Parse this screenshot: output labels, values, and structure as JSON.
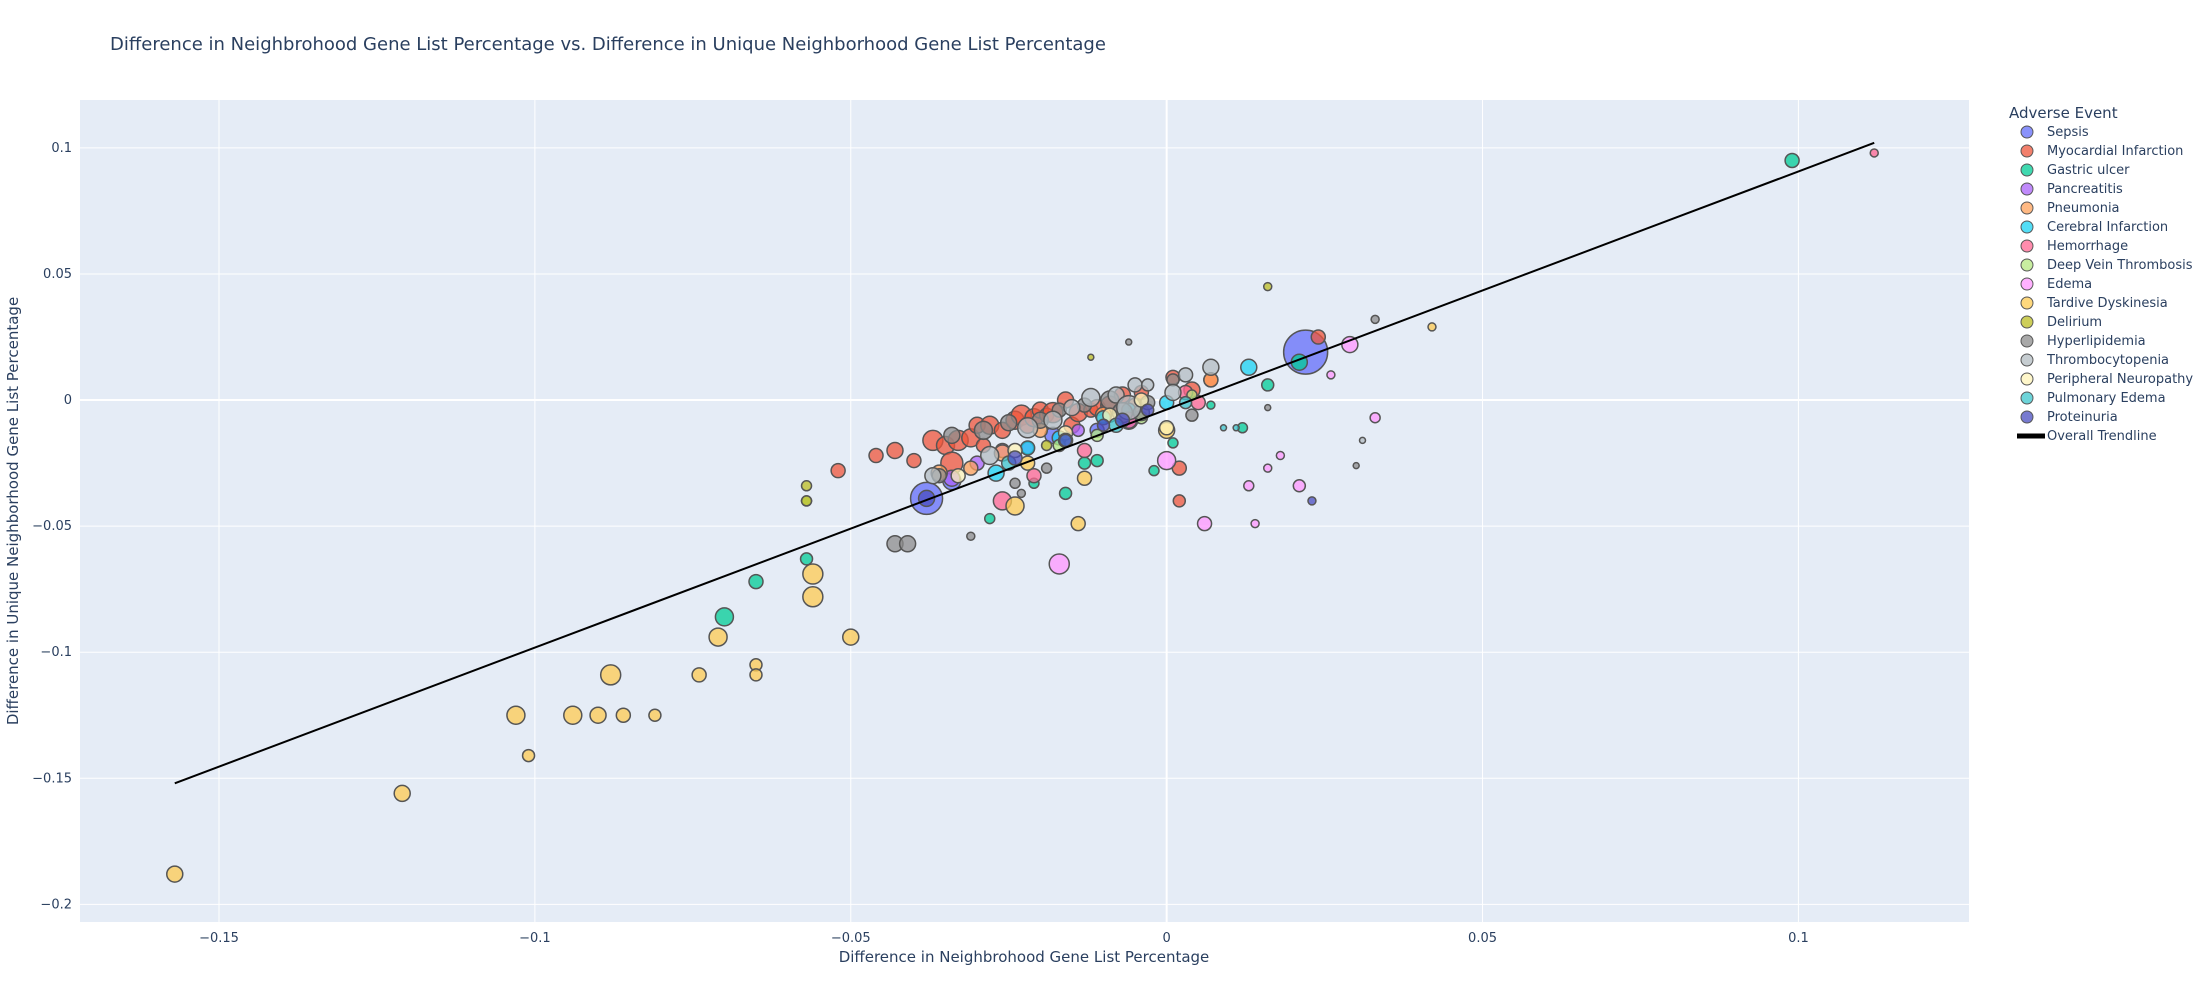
{
  "chart_data": {
    "type": "scatter",
    "title": "Difference in Neighbrohood Gene List Percentage vs. Difference in Unique Neighborhood Gene List Percentage",
    "xlabel": "Difference in Neighbrohood Gene List Percentage",
    "ylabel": "Difference in Unique Neighborhood Gene List Percentage",
    "xlim": [
      -0.172,
      0.127
    ],
    "ylim": [
      -0.207,
      0.119
    ],
    "xticks": [
      -0.15,
      -0.1,
      -0.05,
      0,
      0.05,
      0.1
    ],
    "yticks": [
      -0.2,
      -0.15,
      -0.1,
      -0.05,
      0,
      0.05,
      0.1
    ],
    "xtick_labels": [
      "−0.15",
      "−0.1",
      "−0.05",
      "0",
      "0.05",
      "0.1"
    ],
    "ytick_labels": [
      "−0.2",
      "−0.15",
      "−0.1",
      "−0.05",
      "0",
      "0.05",
      "0.1"
    ],
    "grid": true,
    "plot_bgcolor": "#e5ecf6",
    "legend_title": "Adverse Event",
    "legend_position": "right",
    "series": [
      {
        "name": "Sepsis",
        "color": "#636efa",
        "points": [
          [
            -0.038,
            -0.039,
            16
          ],
          [
            -0.034,
            -0.032,
            9
          ],
          [
            -0.018,
            -0.014,
            8
          ],
          [
            -0.011,
            -0.012,
            7
          ],
          [
            -0.006,
            -0.008,
            9
          ],
          [
            0.022,
            0.019,
            22
          ]
        ]
      },
      {
        "name": "Myocardial Infarction",
        "color": "#ef553b",
        "points": [
          [
            -0.052,
            -0.028,
            7
          ],
          [
            -0.046,
            -0.022,
            7
          ],
          [
            -0.043,
            -0.02,
            8
          ],
          [
            -0.04,
            -0.024,
            7
          ],
          [
            -0.037,
            -0.016,
            10
          ],
          [
            -0.035,
            -0.018,
            9
          ],
          [
            -0.034,
            -0.025,
            11
          ],
          [
            -0.033,
            -0.016,
            10
          ],
          [
            -0.031,
            -0.015,
            9
          ],
          [
            -0.03,
            -0.01,
            8
          ],
          [
            -0.029,
            -0.018,
            7
          ],
          [
            -0.028,
            -0.01,
            9
          ],
          [
            -0.026,
            -0.012,
            8
          ],
          [
            -0.024,
            -0.008,
            9
          ],
          [
            -0.023,
            -0.006,
            10
          ],
          [
            -0.022,
            -0.01,
            8
          ],
          [
            -0.021,
            -0.007,
            9
          ],
          [
            -0.02,
            -0.004,
            8
          ],
          [
            -0.019,
            -0.006,
            7
          ],
          [
            -0.018,
            -0.005,
            10
          ],
          [
            -0.016,
            0,
            8
          ],
          [
            -0.015,
            -0.01,
            8
          ],
          [
            -0.014,
            -0.005,
            9
          ],
          [
            -0.012,
            -0.004,
            7
          ],
          [
            -0.011,
            -0.003,
            8
          ],
          [
            -0.009,
            -0.002,
            9
          ],
          [
            -0.007,
            0.002,
            8
          ],
          [
            -0.004,
            0.003,
            7
          ],
          [
            0.001,
            0.009,
            7
          ],
          [
            0.004,
            0.004,
            8
          ],
          [
            0.007,
            0.008,
            7
          ],
          [
            0.024,
            0.025,
            7
          ],
          [
            0.002,
            -0.027,
            7
          ],
          [
            0.002,
            -0.04,
            6
          ]
        ]
      },
      {
        "name": "Gastric ulcer",
        "color": "#00cc96",
        "points": [
          [
            0.099,
            0.095,
            7
          ],
          [
            -0.07,
            -0.086,
            9
          ],
          [
            -0.065,
            -0.072,
            7
          ],
          [
            -0.057,
            -0.063,
            6
          ],
          [
            -0.028,
            -0.047,
            5
          ],
          [
            -0.021,
            -0.033,
            5
          ],
          [
            -0.016,
            -0.037,
            6
          ],
          [
            -0.013,
            -0.025,
            6
          ],
          [
            -0.011,
            -0.024,
            6
          ],
          [
            -0.002,
            -0.028,
            5
          ],
          [
            0.001,
            -0.017,
            5
          ],
          [
            0.012,
            -0.011,
            5
          ],
          [
            0.016,
            0.006,
            6
          ],
          [
            0.021,
            0.015,
            8
          ],
          [
            0.007,
            -0.002,
            4
          ]
        ]
      },
      {
        "name": "Pancreatitis",
        "color": "#ab63fa",
        "points": [
          [
            -0.034,
            -0.031,
            8
          ],
          [
            -0.03,
            -0.025,
            7
          ],
          [
            -0.026,
            -0.02,
            7
          ],
          [
            -0.022,
            -0.019,
            6
          ],
          [
            -0.014,
            -0.012,
            6
          ]
        ]
      },
      {
        "name": "Pneumonia",
        "color": "#ffa15a",
        "points": [
          [
            -0.036,
            -0.029,
            8
          ],
          [
            -0.031,
            -0.027,
            7
          ],
          [
            -0.026,
            -0.021,
            8
          ],
          [
            -0.02,
            -0.012,
            7
          ],
          [
            -0.01,
            -0.006,
            8
          ],
          [
            -0.005,
            -0.002,
            7
          ],
          [
            0.007,
            0.008,
            7
          ]
        ]
      },
      {
        "name": "Cerebral Infarction",
        "color": "#19d3f3",
        "points": [
          [
            -0.027,
            -0.029,
            8
          ],
          [
            -0.022,
            -0.019,
            7
          ],
          [
            -0.017,
            -0.015,
            7
          ],
          [
            -0.01,
            -0.007,
            7
          ],
          [
            0,
            -0.001,
            7
          ],
          [
            0.013,
            0.013,
            8
          ],
          [
            -0.006,
            -0.004,
            7
          ]
        ]
      },
      {
        "name": "Hemorrhage",
        "color": "#ff6692",
        "points": [
          [
            0.112,
            0.098,
            4
          ],
          [
            -0.026,
            -0.04,
            9
          ],
          [
            -0.021,
            -0.03,
            7
          ],
          [
            -0.013,
            -0.02,
            7
          ],
          [
            -0.006,
            -0.008,
            8
          ],
          [
            0.003,
            0.003,
            7
          ],
          [
            0.005,
            -0.001,
            7
          ]
        ]
      },
      {
        "name": "Deep Vein Thrombosis",
        "color": "#b6e880",
        "points": [
          [
            -0.057,
            -0.04,
            5
          ],
          [
            -0.017,
            -0.018,
            6
          ],
          [
            -0.011,
            -0.014,
            6
          ],
          [
            -0.004,
            -0.007,
            6
          ],
          [
            0.004,
            0.002,
            5
          ]
        ]
      },
      {
        "name": "Edema",
        "color": "#ff97ff",
        "points": [
          [
            -0.017,
            -0.065,
            10
          ],
          [
            0,
            -0.024,
            9
          ],
          [
            0.006,
            -0.049,
            7
          ],
          [
            0.013,
            -0.034,
            5
          ],
          [
            0.014,
            -0.049,
            4
          ],
          [
            0.016,
            -0.027,
            4
          ],
          [
            0.018,
            -0.022,
            4
          ],
          [
            0.021,
            -0.034,
            6
          ],
          [
            0.026,
            0.01,
            4
          ],
          [
            0.029,
            0.022,
            8
          ],
          [
            0.033,
            -0.007,
            5
          ]
        ]
      },
      {
        "name": "Tardive Dyskinesia",
        "color": "#fecb52",
        "points": [
          [
            -0.157,
            -0.188,
            8
          ],
          [
            -0.121,
            -0.156,
            8
          ],
          [
            -0.101,
            -0.141,
            6
          ],
          [
            -0.103,
            -0.125,
            9
          ],
          [
            -0.094,
            -0.125,
            9
          ],
          [
            -0.09,
            -0.125,
            8
          ],
          [
            -0.086,
            -0.125,
            7
          ],
          [
            -0.081,
            -0.125,
            6
          ],
          [
            -0.088,
            -0.109,
            10
          ],
          [
            -0.074,
            -0.109,
            7
          ],
          [
            -0.071,
            -0.094,
            9
          ],
          [
            -0.065,
            -0.105,
            6
          ],
          [
            -0.065,
            -0.109,
            6
          ],
          [
            -0.056,
            -0.078,
            10
          ],
          [
            -0.056,
            -0.069,
            10
          ],
          [
            -0.05,
            -0.094,
            8
          ],
          [
            -0.024,
            -0.042,
            9
          ],
          [
            -0.014,
            -0.049,
            7
          ],
          [
            -0.013,
            -0.031,
            7
          ],
          [
            -0.022,
            -0.025,
            7
          ],
          [
            0,
            -0.012,
            8
          ],
          [
            0.042,
            0.029,
            4
          ]
        ]
      },
      {
        "name": "Delirium",
        "color": "#bcbd22",
        "points": [
          [
            0.016,
            0.045,
            4
          ],
          [
            -0.057,
            -0.034,
            5
          ],
          [
            -0.057,
            -0.04,
            5
          ],
          [
            -0.012,
            0.017,
            3
          ],
          [
            -0.019,
            -0.018,
            5
          ]
        ]
      },
      {
        "name": "Hyperlipidemia",
        "color": "#8c8c8c",
        "points": [
          [
            -0.043,
            -0.057,
            8
          ],
          [
            -0.041,
            -0.057,
            8
          ],
          [
            -0.031,
            -0.054,
            4
          ],
          [
            -0.024,
            -0.033,
            5
          ],
          [
            -0.023,
            -0.037,
            4
          ],
          [
            -0.019,
            -0.027,
            5
          ],
          [
            -0.036,
            -0.03,
            7
          ],
          [
            -0.034,
            -0.014,
            8
          ],
          [
            -0.029,
            -0.012,
            9
          ],
          [
            -0.025,
            -0.009,
            8
          ],
          [
            -0.02,
            -0.008,
            8
          ],
          [
            -0.017,
            -0.004,
            7
          ],
          [
            -0.013,
            -0.002,
            7
          ],
          [
            -0.009,
            0,
            9
          ],
          [
            -0.007,
            -0.005,
            10
          ],
          [
            -0.004,
            -0.005,
            8
          ],
          [
            -0.003,
            -0.001,
            7
          ],
          [
            0.001,
            0.008,
            6
          ],
          [
            0.004,
            -0.006,
            6
          ],
          [
            -0.006,
            0.023,
            3
          ],
          [
            0.016,
            -0.003,
            3
          ],
          [
            0.033,
            0.032,
            4
          ],
          [
            0.03,
            -0.026,
            3
          ]
        ]
      },
      {
        "name": "Thrombocytopenia",
        "color": "#b3bcc2",
        "points": [
          [
            -0.037,
            -0.03,
            8
          ],
          [
            -0.028,
            -0.022,
            9
          ],
          [
            -0.022,
            -0.011,
            10
          ],
          [
            -0.018,
            -0.008,
            9
          ],
          [
            -0.015,
            -0.003,
            8
          ],
          [
            -0.012,
            0.001,
            9
          ],
          [
            -0.008,
            0.002,
            8
          ],
          [
            -0.005,
            0.006,
            7
          ],
          [
            -0.003,
            0.006,
            6
          ],
          [
            0.001,
            0.003,
            8
          ],
          [
            0.003,
            0.01,
            7
          ],
          [
            0.007,
            0.013,
            8
          ],
          [
            -0.006,
            -0.003,
            12
          ],
          [
            0.031,
            -0.016,
            3
          ]
        ]
      },
      {
        "name": "Peripheral Neuropathy",
        "color": "#fff4b8",
        "points": [
          [
            -0.033,
            -0.03,
            7
          ],
          [
            -0.024,
            -0.02,
            7
          ],
          [
            -0.016,
            -0.013,
            7
          ],
          [
            -0.009,
            -0.006,
            7
          ],
          [
            0,
            -0.011,
            7
          ],
          [
            -0.004,
            0,
            7
          ]
        ]
      },
      {
        "name": "Pulmonary Edema",
        "color": "#3cc5cc",
        "points": [
          [
            -0.025,
            -0.025,
            7
          ],
          [
            -0.016,
            -0.016,
            7
          ],
          [
            -0.008,
            -0.01,
            7
          ],
          [
            0.003,
            -0.001,
            6
          ],
          [
            0.009,
            -0.011,
            3
          ],
          [
            0.011,
            -0.011,
            3
          ]
        ]
      },
      {
        "name": "Proteinuria",
        "color": "#4a4ec0",
        "points": [
          [
            -0.038,
            -0.039,
            8
          ],
          [
            -0.024,
            -0.023,
            7
          ],
          [
            -0.016,
            -0.016,
            6
          ],
          [
            -0.01,
            -0.01,
            6
          ],
          [
            -0.007,
            -0.008,
            7
          ],
          [
            -0.003,
            -0.004,
            6
          ],
          [
            0.023,
            -0.04,
            4
          ]
        ]
      }
    ],
    "trendline": {
      "name": "Overall Trendline",
      "color": "#000000",
      "x": [
        -0.157,
        0.112
      ],
      "y": [
        -0.152,
        0.102
      ]
    }
  }
}
